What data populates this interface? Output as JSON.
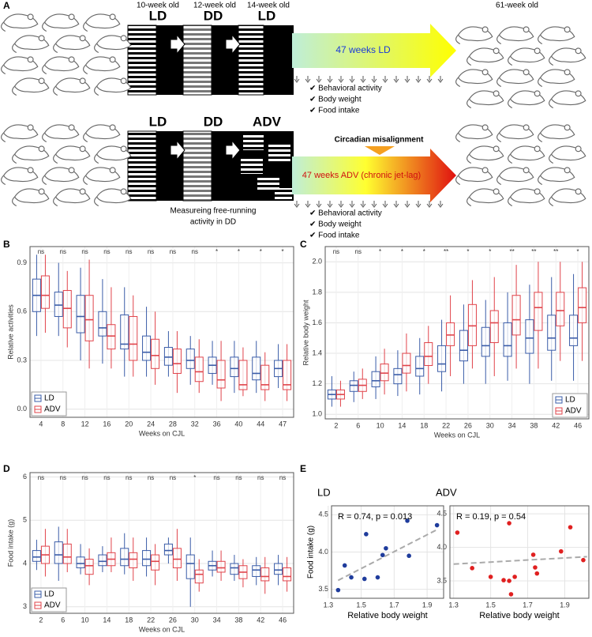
{
  "diagram": {
    "panel_labels": [
      "A",
      "B",
      "C",
      "D",
      "E"
    ],
    "ages": [
      "10-week old",
      "12-week old",
      "14-week old"
    ],
    "end_age": "61-week old",
    "row1_phases": [
      "LD",
      "DD",
      "LD"
    ],
    "row2_phases": [
      "LD",
      "DD",
      "ADV"
    ],
    "row1_arrow": "47 weeks LD",
    "row2_arrow": "47 weeks ADV (chronic jet-lag)",
    "misalignment": "Circadian misalignment",
    "measures": [
      "✔ Behavioral activity",
      "✔ Body weight",
      "✔ Food intake"
    ],
    "note": [
      "Measureing free-running",
      "activity in DD"
    ]
  },
  "chart_data": [
    {
      "type": "box",
      "y_label": "Relative activities",
      "x_label": "Weeks on CJL",
      "categories": [
        4,
        8,
        12,
        16,
        20,
        24,
        28,
        32,
        36,
        40,
        44,
        47
      ],
      "significance": [
        "ns",
        "ns",
        "ns",
        "ns",
        "ns",
        "ns",
        "ns",
        "ns",
        "*",
        "*",
        "*",
        "*"
      ],
      "ylim": [
        -0.05,
        1.0
      ],
      "yticks": [
        {
          "value": 0,
          "label": "0.0"
        },
        0.3,
        0.6,
        0.9
      ],
      "grid": true,
      "legend": "bottom-left",
      "series": [
        {
          "name": "LD",
          "color": "#3a5ca8",
          "whisker_low": [
            0.45,
            0.45,
            0.3,
            0.28,
            0.2,
            0.2,
            0.2,
            0.15,
            0.15,
            0.1,
            0.1,
            0.13
          ],
          "q1": [
            0.6,
            0.57,
            0.47,
            0.45,
            0.37,
            0.3,
            0.27,
            0.25,
            0.22,
            0.2,
            0.18,
            0.2
          ],
          "median": [
            0.7,
            0.64,
            0.57,
            0.5,
            0.4,
            0.35,
            0.32,
            0.3,
            0.27,
            0.25,
            0.22,
            0.25
          ],
          "q3": [
            0.8,
            0.72,
            0.7,
            0.6,
            0.58,
            0.45,
            0.38,
            0.37,
            0.32,
            0.32,
            0.32,
            0.3
          ],
          "whisker_high": [
            0.95,
            0.9,
            0.87,
            0.8,
            0.75,
            0.63,
            0.48,
            0.45,
            0.42,
            0.42,
            0.42,
            0.4
          ]
        },
        {
          "name": "ADV",
          "color": "#e0434a",
          "whisker_low": [
            0.47,
            0.38,
            0.25,
            0.25,
            0.2,
            0.15,
            0.1,
            0.1,
            0.05,
            0.08,
            0.05,
            0.05
          ],
          "q1": [
            0.62,
            0.5,
            0.42,
            0.37,
            0.3,
            0.25,
            0.22,
            0.17,
            0.13,
            0.12,
            0.12,
            0.12
          ],
          "median": [
            0.7,
            0.62,
            0.55,
            0.45,
            0.4,
            0.33,
            0.28,
            0.23,
            0.18,
            0.15,
            0.15,
            0.15
          ],
          "q3": [
            0.82,
            0.73,
            0.7,
            0.52,
            0.57,
            0.43,
            0.37,
            0.32,
            0.3,
            0.3,
            0.27,
            0.3
          ],
          "whisker_high": [
            0.95,
            0.85,
            0.92,
            0.75,
            0.7,
            0.6,
            0.48,
            0.43,
            0.42,
            0.38,
            0.35,
            0.4
          ]
        }
      ]
    },
    {
      "type": "box",
      "y_label": "Relative body weight",
      "x_label": "Weeks on CJL",
      "categories": [
        2,
        6,
        10,
        14,
        18,
        22,
        26,
        30,
        34,
        38,
        42,
        46
      ],
      "significance": [
        "ns",
        "ns",
        "*",
        "*",
        "*",
        "**",
        "*",
        "*",
        "**",
        "**",
        "**",
        "*"
      ],
      "ylim": [
        0.97,
        2.1
      ],
      "yticks": [
        {
          "value": 1,
          "label": "1.0"
        },
        1.2,
        1.4,
        1.6,
        1.8,
        {
          "value": 2,
          "label": "2.0"
        }
      ],
      "grid": true,
      "legend": "bottom-right",
      "series": [
        {
          "name": "LD",
          "color": "#3a5ca8",
          "whisker_low": [
            1.05,
            1.08,
            1.1,
            1.12,
            1.13,
            1.15,
            1.2,
            1.2,
            1.22,
            1.2,
            1.22,
            1.22
          ],
          "q1": [
            1.1,
            1.15,
            1.18,
            1.2,
            1.25,
            1.28,
            1.35,
            1.38,
            1.38,
            1.4,
            1.42,
            1.45
          ],
          "median": [
            1.13,
            1.19,
            1.22,
            1.26,
            1.3,
            1.33,
            1.42,
            1.45,
            1.45,
            1.5,
            1.5,
            1.5
          ],
          "q3": [
            1.16,
            1.22,
            1.28,
            1.3,
            1.38,
            1.45,
            1.55,
            1.57,
            1.6,
            1.62,
            1.65,
            1.65
          ],
          "whisker_high": [
            1.25,
            1.28,
            1.38,
            1.42,
            1.5,
            1.62,
            1.72,
            1.75,
            1.8,
            1.85,
            1.9,
            1.92
          ]
        },
        {
          "name": "ADV",
          "color": "#e0434a",
          "whisker_low": [
            1.05,
            1.1,
            1.13,
            1.15,
            1.2,
            1.25,
            1.3,
            1.25,
            1.3,
            1.3,
            1.35,
            1.35
          ],
          "q1": [
            1.1,
            1.15,
            1.22,
            1.27,
            1.32,
            1.45,
            1.45,
            1.47,
            1.52,
            1.55,
            1.58,
            1.6
          ],
          "median": [
            1.13,
            1.19,
            1.27,
            1.32,
            1.38,
            1.52,
            1.58,
            1.6,
            1.62,
            1.7,
            1.68,
            1.7
          ],
          "q3": [
            1.16,
            1.23,
            1.33,
            1.4,
            1.47,
            1.6,
            1.72,
            1.68,
            1.78,
            1.8,
            1.8,
            1.83
          ],
          "whisker_high": [
            1.22,
            1.3,
            1.43,
            1.53,
            1.58,
            1.78,
            1.88,
            1.9,
            1.98,
            2.0,
            2.0,
            2.0
          ]
        }
      ]
    },
    {
      "type": "box",
      "y_label": "Food intake (g)",
      "x_label": "Weeks on CJL",
      "categories": [
        2,
        6,
        10,
        14,
        18,
        22,
        26,
        30,
        34,
        38,
        42,
        46
      ],
      "significance": [
        "ns",
        "ns",
        "ns",
        "ns",
        "ns",
        "ns",
        "ns",
        "*",
        "ns",
        "ns",
        "ns",
        "ns"
      ],
      "ylim": [
        2.85,
        6.1
      ],
      "yticks": [
        3,
        4,
        5,
        6
      ],
      "grid": true,
      "legend": "bottom-left",
      "series": [
        {
          "name": "LD",
          "color": "#3a5ca8",
          "whisker_low": [
            3.85,
            3.6,
            3.75,
            3.8,
            3.75,
            3.7,
            4.0,
            3.0,
            3.7,
            3.6,
            3.5,
            3.5
          ],
          "q1": [
            4.05,
            4.0,
            3.9,
            3.95,
            3.95,
            3.95,
            4.2,
            3.65,
            3.85,
            3.75,
            3.7,
            3.75
          ],
          "median": [
            4.15,
            4.2,
            4.0,
            4.05,
            4.1,
            4.1,
            4.3,
            4.0,
            3.95,
            3.9,
            3.85,
            3.85
          ],
          "q3": [
            4.3,
            4.5,
            4.15,
            4.2,
            4.35,
            4.3,
            4.45,
            4.2,
            4.05,
            4.0,
            3.95,
            4.0
          ],
          "whisker_high": [
            4.55,
            4.85,
            4.45,
            4.4,
            4.7,
            4.6,
            4.6,
            4.6,
            4.3,
            4.2,
            4.15,
            4.2
          ]
        },
        {
          "name": "ADV",
          "color": "#e0434a",
          "whisker_low": [
            3.7,
            3.8,
            3.5,
            3.8,
            3.6,
            3.5,
            3.6,
            3.35,
            3.6,
            3.45,
            3.3,
            3.35
          ],
          "q1": [
            4.0,
            4.0,
            3.75,
            3.95,
            3.9,
            3.85,
            3.9,
            3.55,
            3.8,
            3.65,
            3.6,
            3.6
          ],
          "median": [
            4.2,
            4.15,
            3.95,
            4.1,
            4.1,
            4.05,
            4.1,
            3.75,
            3.9,
            3.8,
            3.7,
            3.7
          ],
          "q3": [
            4.4,
            4.45,
            4.1,
            4.25,
            4.25,
            4.2,
            4.35,
            3.85,
            4.05,
            3.95,
            3.9,
            3.9
          ],
          "whisker_high": [
            4.8,
            4.8,
            4.35,
            4.6,
            4.6,
            4.45,
            4.8,
            4.1,
            4.3,
            4.1,
            4.15,
            4.15
          ]
        }
      ]
    },
    {
      "type": "scatter",
      "title": "LD",
      "annotation": "R = 0.74,  p = 0.013",
      "x_label": "Relative body weight",
      "y_label": "Food intake (g)",
      "xlim": [
        1.32,
        2.0
      ],
      "ylim": [
        3.38,
        4.62
      ],
      "xticks": [
        1.3,
        1.5,
        1.7,
        1.9
      ],
      "yticks": [
        3.5,
        {
          "value": 4,
          "label": "4.0"
        },
        4.5
      ],
      "grid": true,
      "color": "#1f3c9c",
      "x": [
        1.36,
        1.4,
        1.44,
        1.52,
        1.53,
        1.6,
        1.63,
        1.65,
        1.78,
        1.79,
        1.96
      ],
      "y": [
        3.49,
        3.82,
        3.66,
        3.64,
        4.24,
        3.66,
        3.96,
        4.05,
        4.42,
        3.95,
        4.36
      ],
      "trend": {
        "x": [
          1.36,
          1.96
        ],
        "y": [
          3.62,
          4.3
        ]
      }
    },
    {
      "type": "scatter",
      "title": "ADV",
      "annotation": "R = 0.19,  p = 0.54",
      "x_label": "Relative body weight",
      "xlim": [
        1.28,
        2.03
      ],
      "ylim": [
        3.24,
        4.62
      ],
      "xticks": [
        1.3,
        1.5,
        1.7,
        1.9
      ],
      "yticks": [
        3.5,
        {
          "value": 4,
          "label": "4.0"
        },
        4.5
      ],
      "grid": true,
      "color": "#e02020",
      "x": [
        1.32,
        1.4,
        1.5,
        1.57,
        1.6,
        1.6,
        1.61,
        1.63,
        1.73,
        1.75,
        1.74,
        1.88,
        1.93,
        2.0
      ],
      "y": [
        4.22,
        3.69,
        3.56,
        3.51,
        4.36,
        3.5,
        3.3,
        3.56,
        3.89,
        3.61,
        3.7,
        3.94,
        4.3,
        3.81
      ],
      "trend": {
        "x": [
          1.3,
          2.02
        ],
        "y": [
          3.75,
          3.86
        ]
      }
    }
  ]
}
